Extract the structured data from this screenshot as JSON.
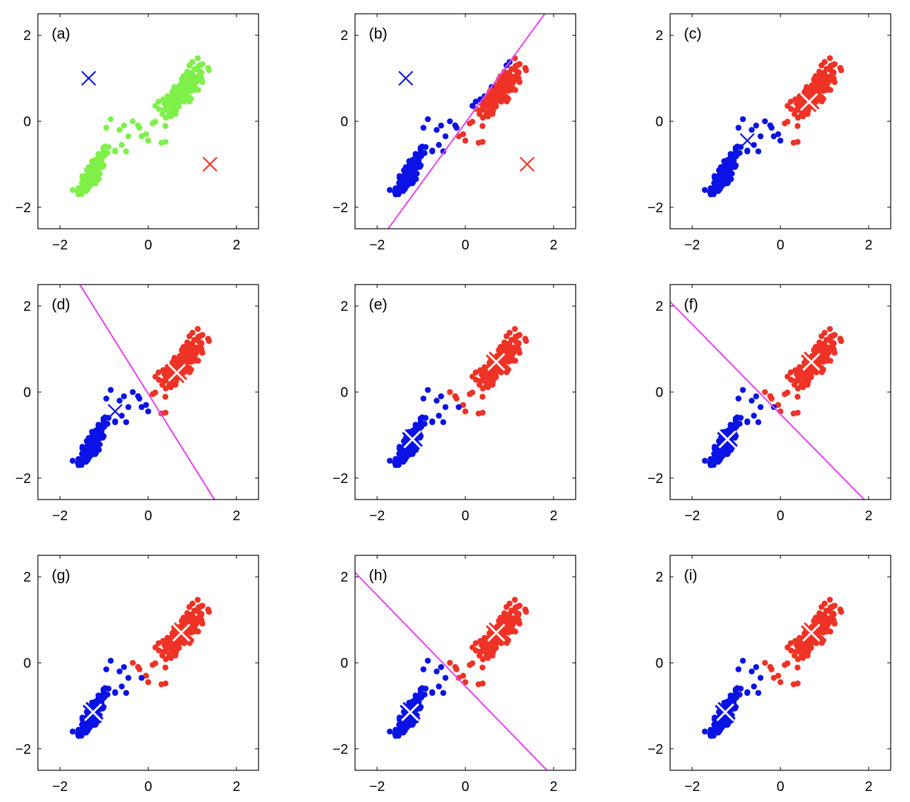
{
  "figure": {
    "description_note": "",
    "colors": {
      "green": "#7ff04a",
      "blue": "#0a12e6",
      "red": "#ee3326",
      "magenta": "#e64cf2",
      "white": "#ffffff",
      "axis": "#000000"
    }
  },
  "chart_data": [
    {
      "type": "scatter",
      "panel_label": "(a)",
      "xlim": [
        -2.5,
        2.5
      ],
      "ylim": [
        -2.5,
        2.5
      ],
      "xticks": [
        "−2",
        "0",
        "2"
      ],
      "yticks": [
        "−2",
        "0",
        "2"
      ],
      "grid": false,
      "point_color": "green",
      "centroids": [
        {
          "x": -1.35,
          "y": 1.0,
          "color": "blue",
          "style": "plain"
        },
        {
          "x": 1.4,
          "y": -1.0,
          "color": "red",
          "style": "plain"
        }
      ],
      "boundary": null
    },
    {
      "type": "scatter",
      "panel_label": "(b)",
      "xlim": [
        -2.5,
        2.5
      ],
      "ylim": [
        -2.5,
        2.5
      ],
      "xticks": [
        "−2",
        "0",
        "2"
      ],
      "yticks": [
        "−2",
        "0",
        "2"
      ],
      "grid": false,
      "point_color": "split",
      "centroids": [
        {
          "x": -1.35,
          "y": 1.0,
          "color": "blue",
          "style": "plain"
        },
        {
          "x": 1.4,
          "y": -1.0,
          "color": "red",
          "style": "plain"
        }
      ],
      "boundary": {
        "x1": -1.75,
        "y1": -2.5,
        "x2": 1.8,
        "y2": 2.5
      }
    },
    {
      "type": "scatter",
      "panel_label": "(c)",
      "xlim": [
        -2.5,
        2.5
      ],
      "ylim": [
        -2.5,
        2.5
      ],
      "xticks": [
        "−2",
        "0",
        "2"
      ],
      "yticks": [
        "−2",
        "0",
        "2"
      ],
      "grid": false,
      "point_color": "split",
      "centroids": [
        {
          "x": -0.75,
          "y": -0.45,
          "color": "blue",
          "style": "plain"
        },
        {
          "x": 0.65,
          "y": 0.45,
          "color": "red",
          "style": "outlined"
        }
      ],
      "boundary": null
    },
    {
      "type": "scatter",
      "panel_label": "(d)",
      "xlim": [
        -2.5,
        2.5
      ],
      "ylim": [
        -2.5,
        2.5
      ],
      "xticks": [
        "−2",
        "0",
        "2"
      ],
      "yticks": [
        "−2",
        "0",
        "2"
      ],
      "grid": false,
      "point_color": "split",
      "centroids": [
        {
          "x": -0.75,
          "y": -0.45,
          "color": "blue",
          "style": "plain"
        },
        {
          "x": 0.65,
          "y": 0.45,
          "color": "red",
          "style": "outlined"
        }
      ],
      "boundary": {
        "x1": -1.55,
        "y1": 2.5,
        "x2": 1.5,
        "y2": -2.5
      }
    },
    {
      "type": "scatter",
      "panel_label": "(e)",
      "xlim": [
        -2.5,
        2.5
      ],
      "ylim": [
        -2.5,
        2.5
      ],
      "xticks": [
        "−2",
        "0",
        "2"
      ],
      "yticks": [
        "−2",
        "0",
        "2"
      ],
      "grid": false,
      "point_color": "split",
      "centroids": [
        {
          "x": -1.2,
          "y": -1.1,
          "color": "blue",
          "style": "outlined"
        },
        {
          "x": 0.7,
          "y": 0.7,
          "color": "red",
          "style": "outlined"
        }
      ],
      "boundary": null
    },
    {
      "type": "scatter",
      "panel_label": "(f)",
      "xlim": [
        -2.5,
        2.5
      ],
      "ylim": [
        -2.5,
        2.5
      ],
      "xticks": [
        "−2",
        "0",
        "2"
      ],
      "yticks": [
        "−2",
        "0",
        "2"
      ],
      "grid": false,
      "point_color": "split",
      "centroids": [
        {
          "x": -1.2,
          "y": -1.1,
          "color": "blue",
          "style": "outlined"
        },
        {
          "x": 0.7,
          "y": 0.7,
          "color": "red",
          "style": "outlined"
        }
      ],
      "boundary": {
        "x1": -2.5,
        "y1": 2.1,
        "x2": 1.9,
        "y2": -2.5
      }
    },
    {
      "type": "scatter",
      "panel_label": "(g)",
      "xlim": [
        -2.5,
        2.5
      ],
      "ylim": [
        -2.5,
        2.5
      ],
      "xticks": [
        "−2",
        "0",
        "2"
      ],
      "yticks": [
        "−2",
        "0",
        "2"
      ],
      "grid": false,
      "point_color": "split",
      "centroids": [
        {
          "x": -1.25,
          "y": -1.15,
          "color": "blue",
          "style": "outlined"
        },
        {
          "x": 0.75,
          "y": 0.7,
          "color": "red",
          "style": "outlined"
        }
      ],
      "boundary": null
    },
    {
      "type": "scatter",
      "panel_label": "(h)",
      "xlim": [
        -2.5,
        2.5
      ],
      "ylim": [
        -2.5,
        2.5
      ],
      "xticks": [
        "−2",
        "0",
        "2"
      ],
      "yticks": [
        "−2",
        "0",
        "2"
      ],
      "grid": false,
      "point_color": "split",
      "centroids": [
        {
          "x": -1.25,
          "y": -1.15,
          "color": "blue",
          "style": "outlined"
        },
        {
          "x": 0.7,
          "y": 0.7,
          "color": "red",
          "style": "outlined"
        }
      ],
      "boundary": {
        "x1": -2.5,
        "y1": 2.1,
        "x2": 1.85,
        "y2": -2.5
      }
    },
    {
      "type": "scatter",
      "panel_label": "(i)",
      "xlim": [
        -2.5,
        2.5
      ],
      "ylim": [
        -2.5,
        2.5
      ],
      "xticks": [
        "−2",
        "0",
        "2"
      ],
      "yticks": [
        "−2",
        "0",
        "2"
      ],
      "grid": false,
      "point_color": "split",
      "centroids": [
        {
          "x": -1.25,
          "y": -1.15,
          "color": "blue",
          "style": "outlined"
        },
        {
          "x": 0.7,
          "y": 0.7,
          "color": "red",
          "style": "outlined"
        }
      ],
      "boundary": null
    }
  ]
}
